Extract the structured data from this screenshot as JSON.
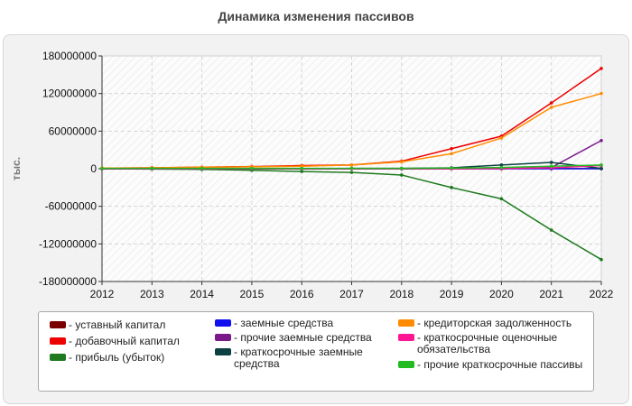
{
  "header": {
    "title": "Динамика изменения пассивов"
  },
  "chart_data": {
    "type": "line",
    "ylabel": "тыс.",
    "x": [
      2012,
      2013,
      2014,
      2015,
      2016,
      2017,
      2018,
      2019,
      2020,
      2021,
      2022
    ],
    "xlim": [
      2012,
      2022
    ],
    "ylim": [
      -180000000,
      180000000
    ],
    "yticks": [
      180000000,
      120000000,
      60000000,
      0,
      -60000000,
      -120000000,
      -180000000
    ],
    "ytick_labels": [
      "180000000",
      "120000000",
      "60000000",
      "0",
      "-60000000",
      "-120000000",
      "-180000000"
    ],
    "xtick_labels": [
      "2012",
      "2013",
      "2014",
      "2015",
      "2016",
      "2017",
      "2018",
      "2019",
      "2020",
      "2021",
      "2022"
    ],
    "grid": true,
    "legend_position": "bottom",
    "series": [
      {
        "name": "- уставный капитал",
        "color": "#7a0000",
        "values": [
          100000,
          100000,
          100000,
          100000,
          100000,
          100000,
          100000,
          100000,
          100000,
          100000,
          100000
        ]
      },
      {
        "name": "- добавочный капитал",
        "color": "#ee0000",
        "values": [
          1000000,
          1500000,
          2500000,
          3500000,
          5000000,
          6000000,
          12000000,
          32000000,
          52000000,
          105000000,
          160000000
        ]
      },
      {
        "name": "- прибыль (убыток)",
        "color": "#1f7a1f",
        "values": [
          0,
          -500000,
          -1000000,
          -2500000,
          -4500000,
          -6000000,
          -10000000,
          -30000000,
          -48000000,
          -98000000,
          -145000000
        ]
      },
      {
        "name": "- заемные средства",
        "color": "#1010ee",
        "values": [
          0,
          0,
          0,
          0,
          0,
          0,
          0,
          0,
          0,
          0,
          0
        ]
      },
      {
        "name": "- прочие заемные средства",
        "color": "#7a1a8a",
        "values": [
          0,
          0,
          0,
          0,
          0,
          0,
          0,
          0,
          0,
          2000000,
          45000000
        ]
      },
      {
        "name": "- краткосрочные заемные средства",
        "color": "#0d4040",
        "values": [
          0,
          0,
          0,
          0,
          0,
          500000,
          500000,
          1500000,
          6000000,
          10000000,
          500000
        ]
      },
      {
        "name": "- кредиторская задолженность",
        "color": "#ff8c00",
        "values": [
          1000000,
          1500000,
          2500000,
          3000000,
          4000000,
          6000000,
          11000000,
          24000000,
          49000000,
          98000000,
          120000000
        ]
      },
      {
        "name": "- краткосрочные оценочные обязательства",
        "color": "#ff1493",
        "values": [
          0,
          0,
          0,
          0,
          0,
          0,
          0,
          0,
          500000,
          1500000,
          5000000
        ]
      },
      {
        "name": "- прочие краткосрочные пассивы",
        "color": "#22bb22",
        "values": [
          500000,
          500000,
          500000,
          500000,
          500000,
          500000,
          500000,
          1000000,
          2000000,
          4000000,
          6000000
        ]
      }
    ]
  }
}
